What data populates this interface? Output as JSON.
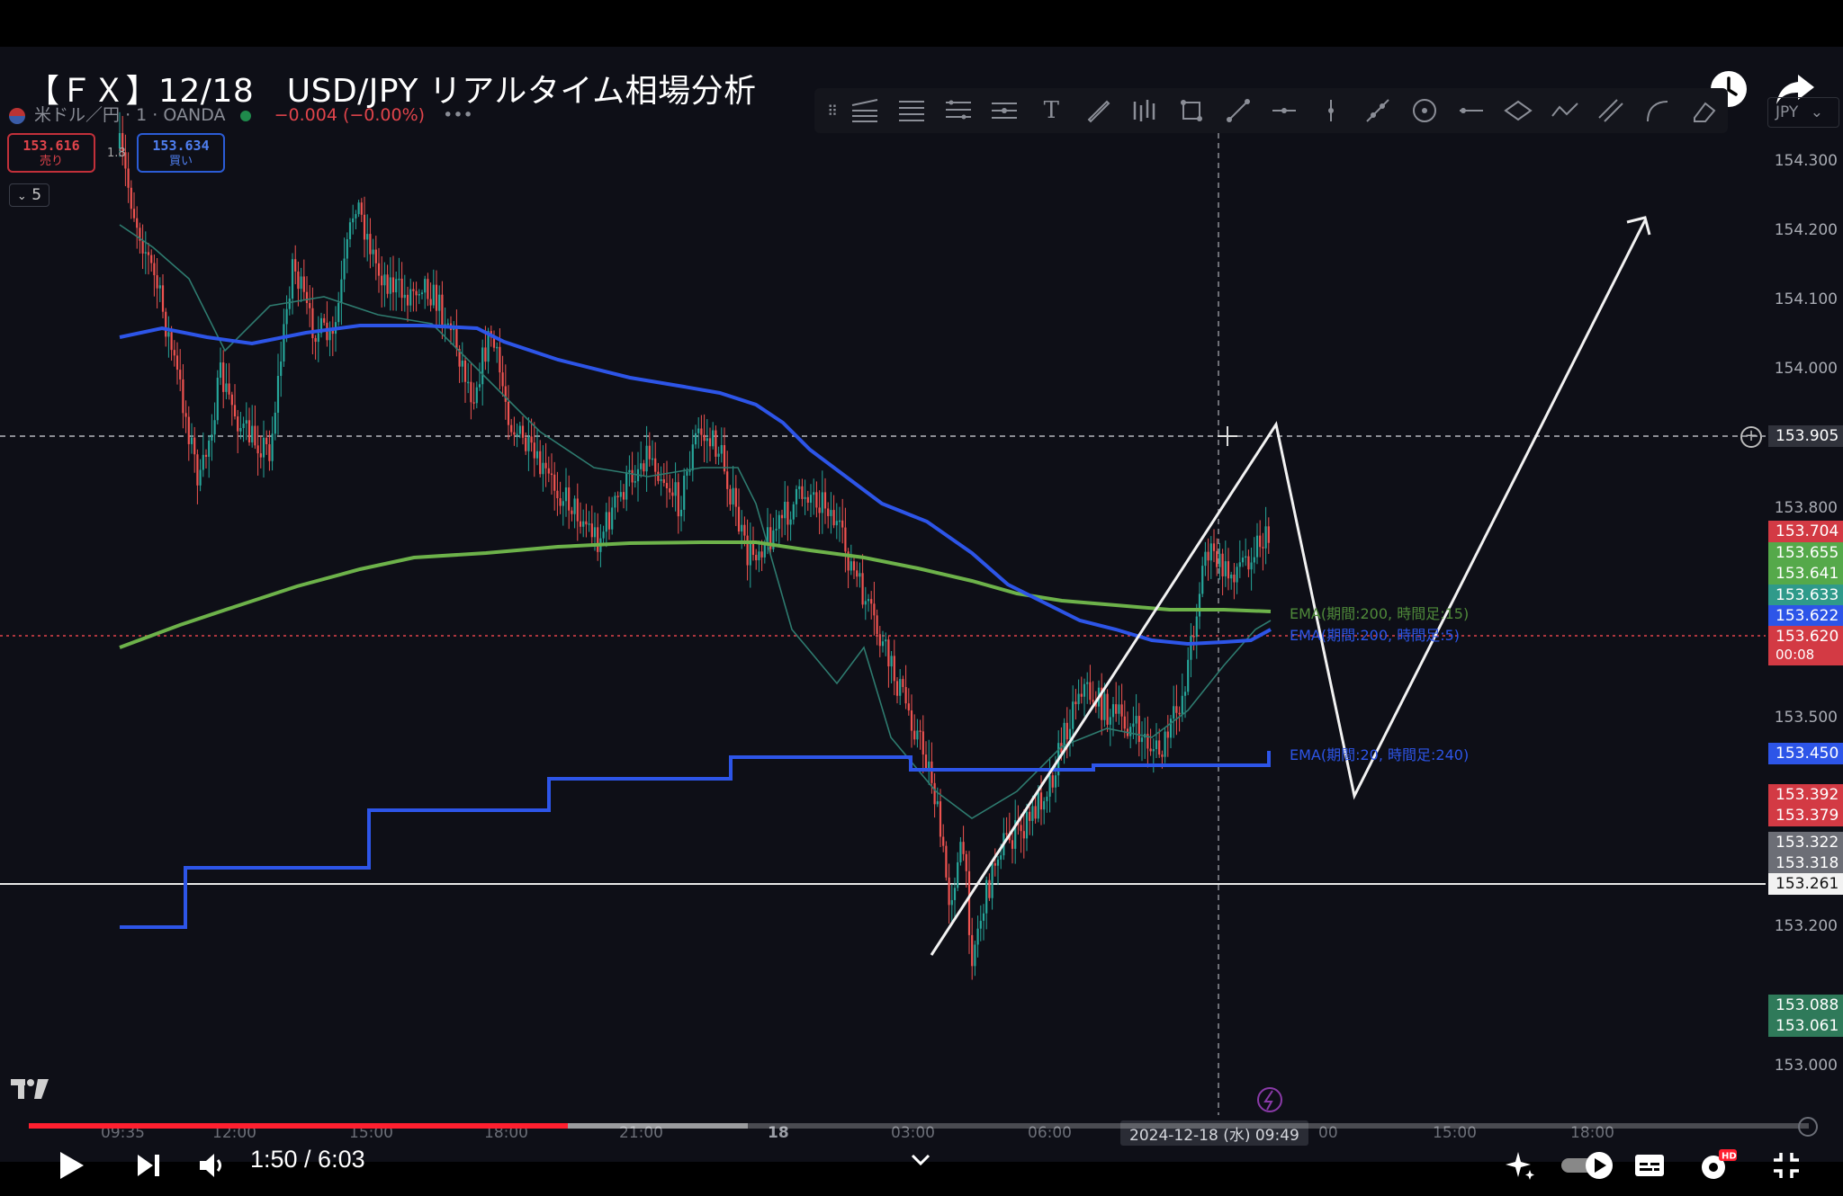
{
  "video": {
    "title": "【ＦＸ】12/18　USD/JPY リアルタイム相場分析",
    "current_time": "1:50 / 6:03",
    "played_fraction": 0.303,
    "buffered_fraction": 0.404
  },
  "symbol": {
    "name": "米ドル／円 · 1 · OANDA",
    "change": "−0.004 (−0.00%)",
    "more": "•••"
  },
  "trade": {
    "sell_price": "153.616",
    "sell_label": "売り",
    "spread": "1.8",
    "buy_price": "153.634",
    "buy_label": "買い",
    "interval_chip": "5"
  },
  "currency_select": "JPY",
  "price_ticks": [
    "154.300",
    "154.200",
    "154.100",
    "154.000",
    "153.800",
    "153.500",
    "153.200",
    "153.000"
  ],
  "price_labels": {
    "crosshair": "153.905",
    "red_1": "153.704",
    "green_1": "153.655",
    "green_2": "153.641",
    "blue_1": "153.633",
    "blue_2": "153.622",
    "last": "153.620",
    "countdown": "00:08",
    "ema_240": "153.450",
    "red_2": "153.392",
    "red_3": "153.379",
    "grey_1": "153.322",
    "grey_2": "153.318",
    "white_line": "153.261",
    "green_3": "153.088",
    "green_4": "153.061"
  },
  "ema_labels": {
    "green": "EMA(期間:200, 時間足:15)",
    "blue": "EMA(期間:200, 時間足:5)",
    "step": "EMA(期間:20, 時間足:240)"
  },
  "time_axis": [
    "09:35",
    "12:00",
    "15:00",
    "18:00",
    "21:00",
    "18",
    "03:00",
    "06:00",
    "00",
    "15:00",
    "18:00"
  ],
  "crosshair_time": "2024-12-18 (水)  09:49",
  "colors": {
    "up": "#26a69a",
    "down": "#ef5350",
    "ema_blue": "#2d55e8",
    "ema_green": "#6db24a",
    "played": "#ff1f2f"
  }
}
